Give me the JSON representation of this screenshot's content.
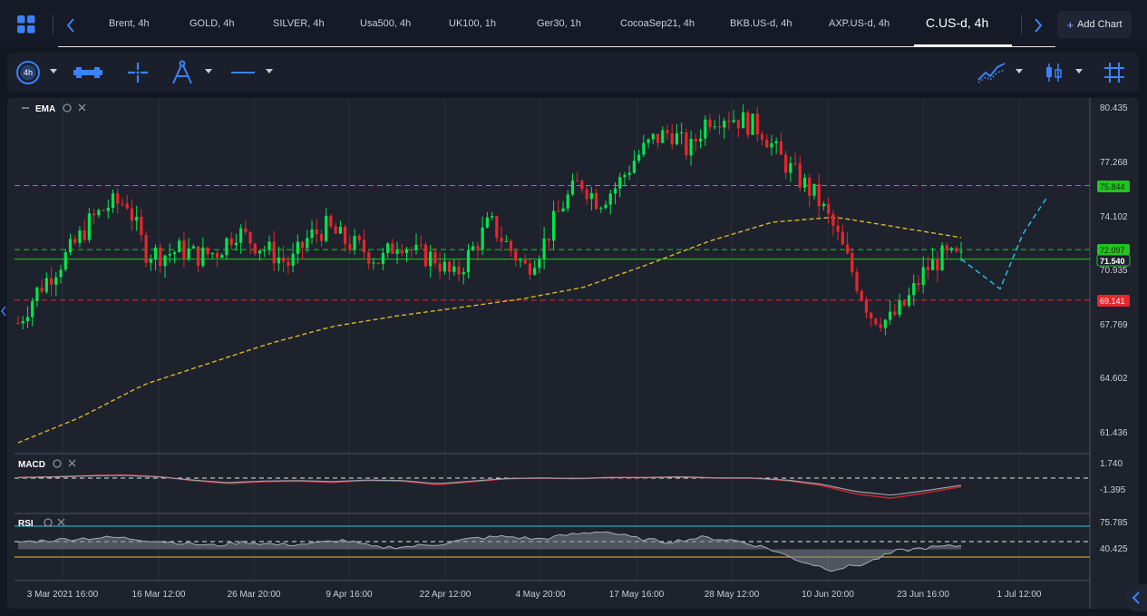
{
  "tabs": [
    {
      "label": "Brent, 4h"
    },
    {
      "label": "GOLD, 4h"
    },
    {
      "label": "SILVER, 4h"
    },
    {
      "label": "Usa500, 4h"
    },
    {
      "label": "UK100, 1h"
    },
    {
      "label": "Ger30, 1h"
    },
    {
      "label": "CocoaSep21, 4h"
    },
    {
      "label": "BKB.US-d, 4h"
    },
    {
      "label": "AXP.US-d, 4h"
    },
    {
      "label": "C.US-d, 4h"
    }
  ],
  "add_chart_label": "Add Chart",
  "toolbar": {
    "interval_label": "4h"
  },
  "indicators": {
    "ema": "EMA",
    "macd": "MACD",
    "rsi": "RSI"
  },
  "price_axis": [
    "80.435",
    "77.268",
    "74.102",
    "70.935",
    "67.769",
    "64.602",
    "61.436"
  ],
  "macd_axis": [
    "1.740",
    "-1.395"
  ],
  "rsi_axis": [
    "75.785",
    "40.425"
  ],
  "price_tags": {
    "upper_line": "75.844",
    "middle_line": "72.097",
    "current": "71.540",
    "lower_line": "69.141"
  },
  "time_axis": [
    "3 Mar 2021 16:00",
    "16 Mar 12:00",
    "26 Mar 20:00",
    "9 Apr 16:00",
    "22 Apr 12:00",
    "4 May 20:00",
    "17 May 16:00",
    "28 May 12:00",
    "10 Jun 20:00",
    "23 Jun 16:00",
    "1 Jul 12:00"
  ],
  "colors": {
    "up": "#00e64d",
    "down": "#e8262c",
    "ema": "#d8b72a",
    "upper_line": "#22c322",
    "lower_line": "#e8262c",
    "forecast": "#1ec8e8",
    "rsi_upper": "#27c6d6",
    "rsi_lower": "#e6c234"
  },
  "chart_data": {
    "type": "candlestick",
    "symbol": "C.US-d",
    "interval": "4h",
    "ylim": [
      61.436,
      80.435
    ],
    "horizontal_lines": [
      75.844,
      72.097,
      69.141
    ],
    "last_price": 71.54,
    "forecast_path": [
      71.54,
      69.8,
      73.0,
      75.1
    ],
    "ema_path": [
      60.8,
      62.3,
      64.2,
      65.4,
      66.6,
      67.6,
      68.2,
      68.7,
      69.2,
      69.9,
      71.2,
      72.6,
      73.7,
      74.0,
      73.4,
      72.8
    ],
    "price_path": [
      67.8,
      69.6,
      70.9,
      72.2,
      73.8,
      74.7,
      74.9,
      72.0,
      71.8,
      72.1,
      71.7,
      72.0,
      73.2,
      72.5,
      71.9,
      71.2,
      72.8,
      73.4,
      72.6,
      72.1,
      71.4,
      72.7,
      71.8,
      71.6,
      70.4,
      72.0,
      73.7,
      72.3,
      71.0,
      72.5,
      74.7,
      76.1,
      74.9,
      75.8,
      77.4,
      78.5,
      79.0,
      77.8,
      79.8,
      80.0,
      79.6,
      79.1,
      77.5,
      76.3,
      75.2,
      73.3,
      70.8,
      68.3,
      67.9,
      69.0,
      70.9,
      71.7,
      71.5
    ],
    "macd_ylim": [
      -2.0,
      2.0
    ],
    "macd_path": [
      0.35,
      0.4,
      0.5,
      0.55,
      0.42,
      0.1,
      -0.15,
      0.0,
      0.05,
      -0.05,
      0.1,
      0.05,
      -0.25,
      0.0,
      0.25,
      0.3,
      0.25,
      0.35,
      0.35,
      0.4,
      0.3,
      0.3,
      0.1,
      -0.3,
      -1.0,
      -1.35,
      -0.9,
      -0.4
    ],
    "rsi_ylim": [
      20,
      85
    ],
    "rsi_levels": [
      75.785,
      40.425
    ],
    "rsi_path": [
      58,
      60,
      62,
      63,
      60,
      57,
      54,
      58,
      55,
      56,
      60,
      52,
      53,
      56,
      62,
      64,
      61,
      66,
      70,
      62,
      58,
      63,
      60,
      52,
      38,
      28,
      34,
      48,
      52,
      54
    ]
  }
}
